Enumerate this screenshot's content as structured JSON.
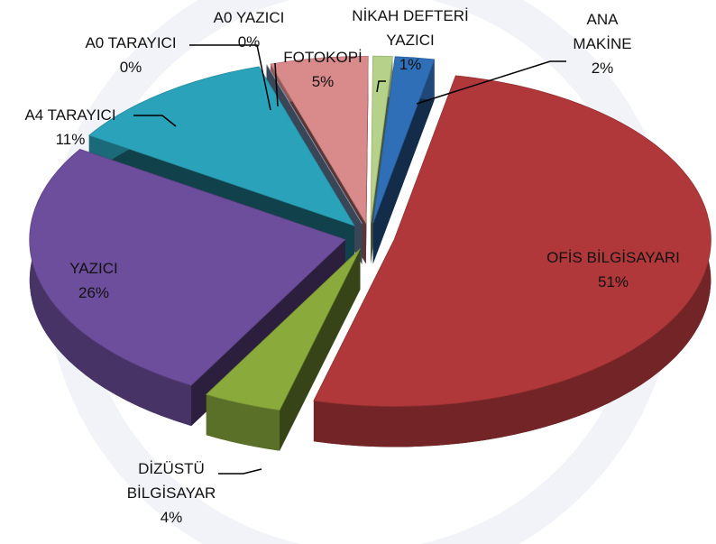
{
  "chart_data": {
    "type": "pie3d",
    "categories": [
      "ANA MAKİNE",
      "OFİS BİLGİSAYARI",
      "DİZÜSTÜ BİLGİSAYAR",
      "YAZICI",
      "A4 TARAYICI",
      "A0 TARAYICI",
      "A0 YAZICI",
      "FOTOKOPİ",
      "NİKAH DEFTERİ YAZICI"
    ],
    "values": [
      2,
      51,
      4,
      26,
      11,
      0,
      0,
      5,
      1
    ],
    "value_labels": [
      "2%",
      "51%",
      "4%",
      "26%",
      "11%",
      "0%",
      "0%",
      "5%",
      "1%"
    ],
    "colors": [
      "#2f6fb8",
      "#b0383a",
      "#8aab3c",
      "#6d4e9c",
      "#2aa3ba",
      "#e07a20",
      "#8fb0dd",
      "#d98a8a",
      "#b5d18a"
    ]
  }
}
